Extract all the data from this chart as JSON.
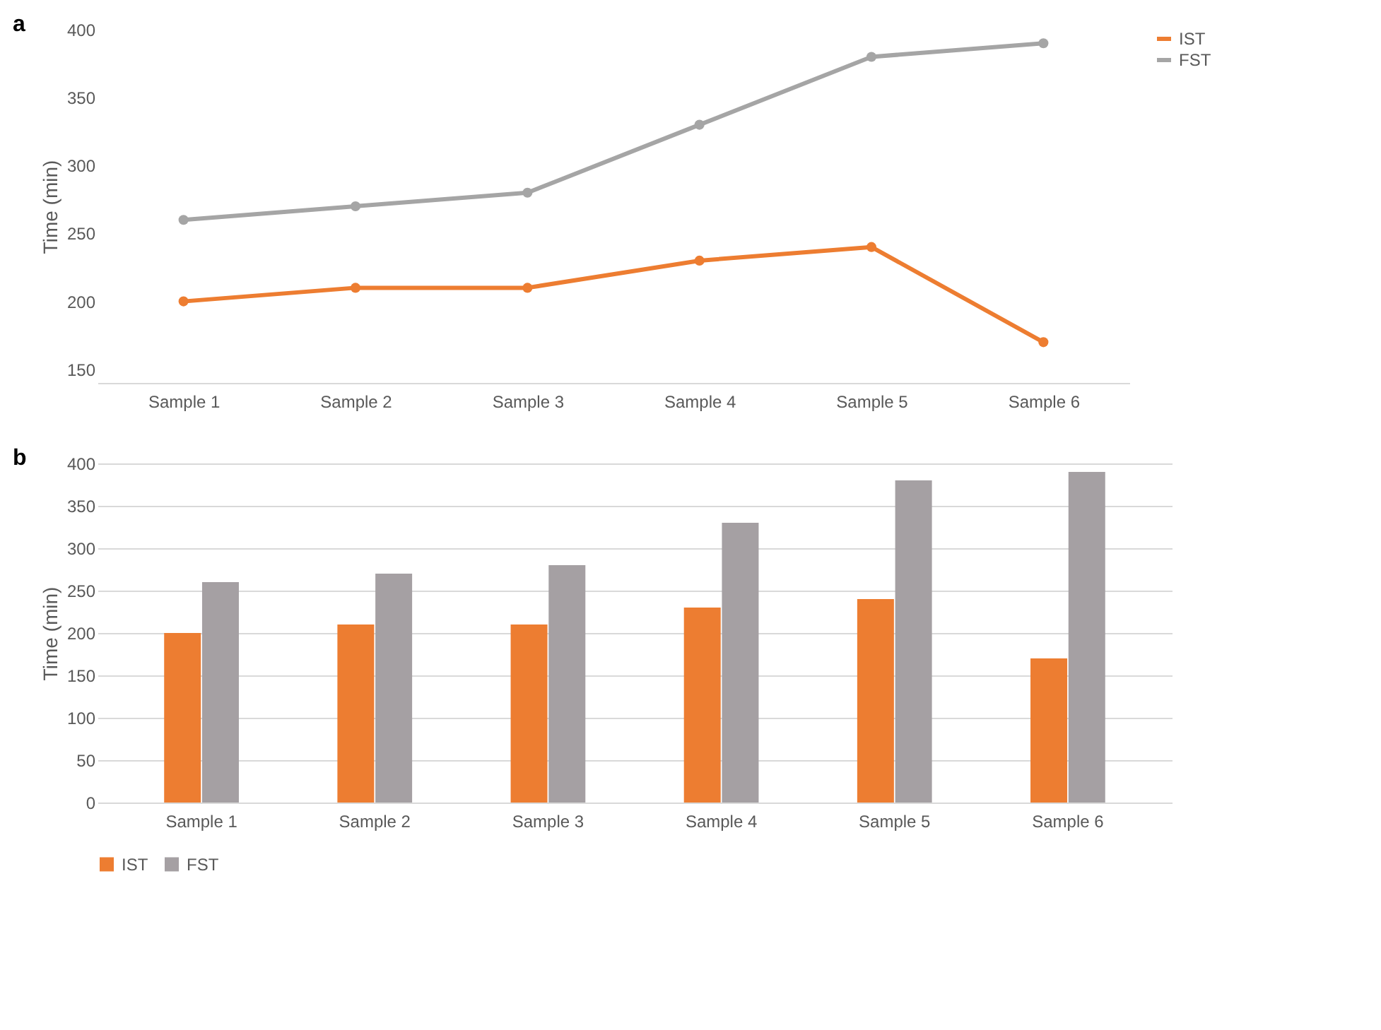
{
  "chart_data": [
    {
      "type": "line",
      "annotations": [
        "a"
      ],
      "ylabel": "Time (min)",
      "categories": [
        "Sample 1",
        "Sample 2",
        "Sample 3",
        "Sample 4",
        "Sample 5",
        "Sample 6"
      ],
      "series": [
        {
          "name": "IST",
          "color": "#ed7d31",
          "values": [
            200,
            210,
            210,
            230,
            240,
            170
          ]
        },
        {
          "name": "FST",
          "color": "#a5a5a5",
          "values": [
            260,
            270,
            280,
            330,
            380,
            390
          ]
        }
      ],
      "ylim": [
        140,
        400
      ],
      "yticks": [
        150,
        200,
        250,
        300,
        350,
        400
      ],
      "grid": false,
      "legend": "right",
      "marker": "circle"
    },
    {
      "type": "bar",
      "annotations": [
        "b"
      ],
      "ylabel": "Time (min)",
      "categories": [
        "Sample 1",
        "Sample 2",
        "Sample 3",
        "Sample 4",
        "Sample 5",
        "Sample 6"
      ],
      "series": [
        {
          "name": "IST",
          "color": "#ed7d31",
          "values": [
            200,
            210,
            210,
            230,
            240,
            170
          ]
        },
        {
          "name": "FST",
          "color": "#a5a0a3",
          "values": [
            260,
            270,
            280,
            330,
            380,
            390
          ]
        }
      ],
      "ylim": [
        0,
        400
      ],
      "yticks": [
        0,
        50,
        100,
        150,
        200,
        250,
        300,
        350,
        400
      ],
      "grid": "y",
      "legend": "bottom"
    }
  ]
}
